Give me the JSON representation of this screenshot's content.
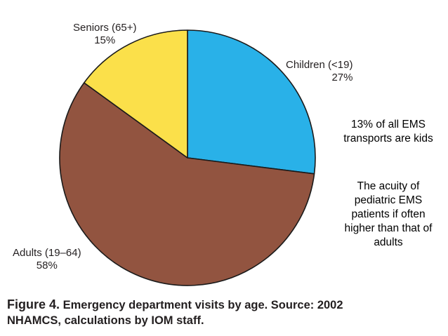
{
  "chart_data": {
    "type": "pie",
    "title": "Emergency department visits by age.",
    "categories": [
      "Children (<19)",
      "Adults (19–64)",
      "Seniors (65+)"
    ],
    "values": [
      27,
      58,
      15
    ],
    "value_labels": [
      "27%",
      "58%",
      "15%"
    ],
    "colors": [
      "#29b1e8",
      "#925440",
      "#fbe04a"
    ],
    "start_angle_deg": 0,
    "direction": "clockwise"
  },
  "notes": {
    "note1": "13% of all EMS transports are kids",
    "note2": "The acuity of pediatric EMS patients if often higher than that of adults"
  },
  "caption": {
    "label": "Figure 4.",
    "line1": "Emergency department visits by age. Source: 2002",
    "line2": "NHAMCS, calculations by IOM staff."
  }
}
